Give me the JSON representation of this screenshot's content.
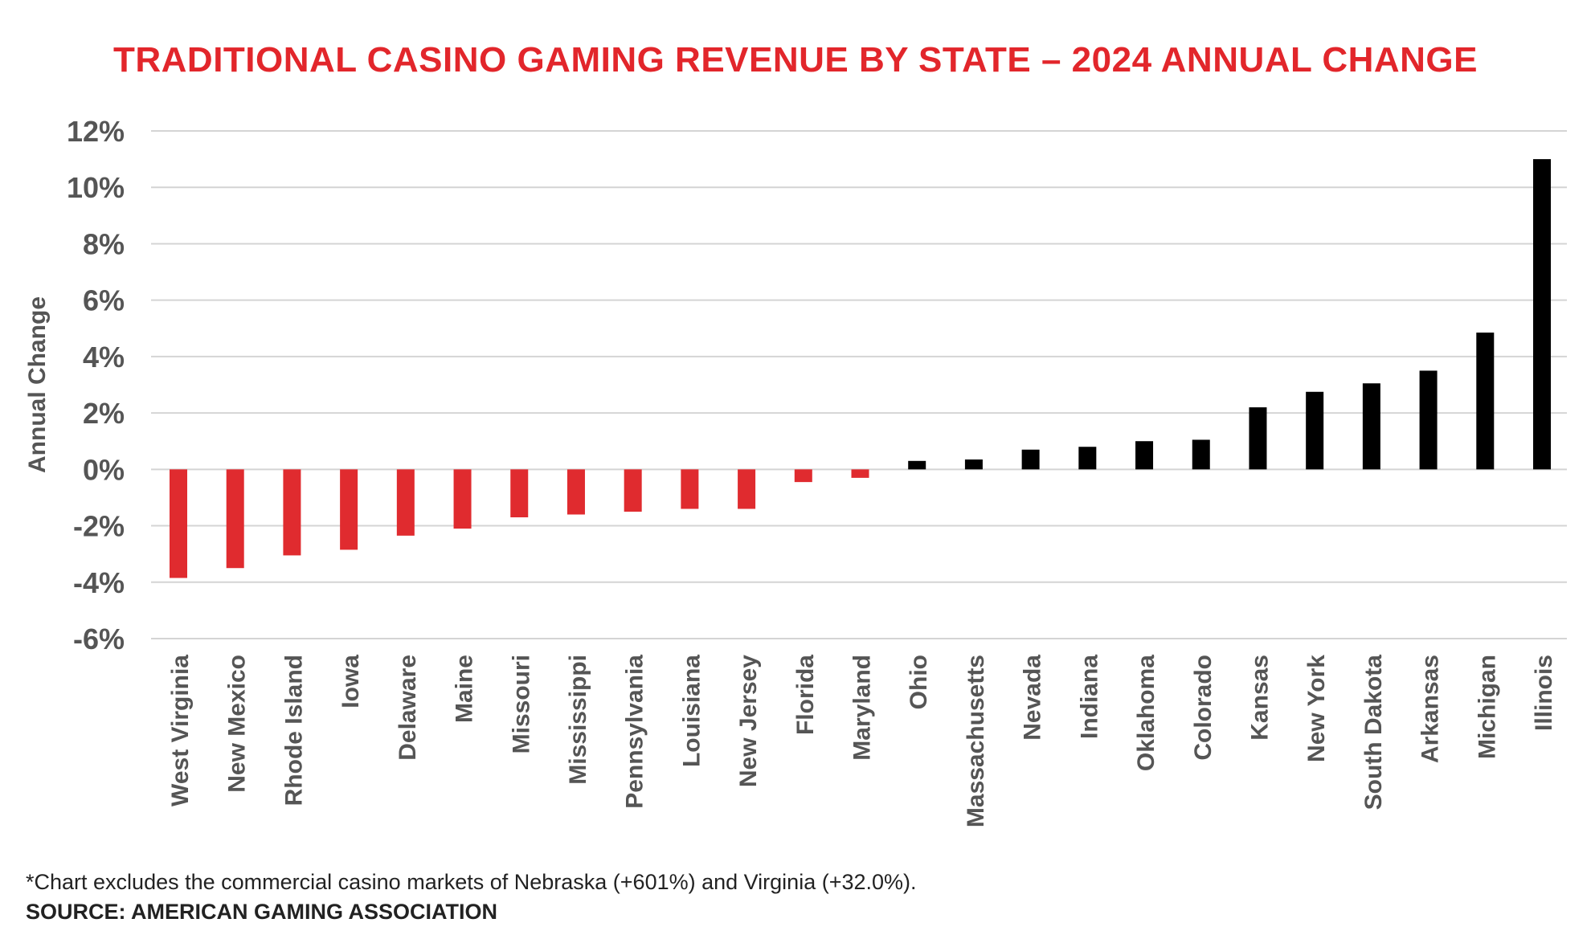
{
  "colors": {
    "title": "#e2262b",
    "negative": "#e02b2f",
    "positive": "#000000",
    "grid": "#d4d4d4",
    "axis_text": "#555555"
  },
  "chart_data": {
    "type": "bar",
    "title": "TRADITIONAL CASINO GAMING REVENUE BY STATE – 2024 ANNUAL CHANGE",
    "ylabel": "Annual Change",
    "xlabel": "",
    "ylim": [
      -6,
      12
    ],
    "yticks": [
      12,
      10,
      8,
      6,
      4,
      2,
      0,
      -2,
      -4,
      -6
    ],
    "ytick_labels": [
      "12%",
      "10%",
      "8%",
      "6%",
      "4%",
      "2%",
      "0%",
      "-2%",
      "-4%",
      "-6%"
    ],
    "grid": true,
    "categories": [
      "West Virginia",
      "New Mexico",
      "Rhode Island",
      "Iowa",
      "Delaware",
      "Maine",
      "Missouri",
      "Mississippi",
      "Pennsylvania",
      "Louisiana",
      "New Jersey",
      "Florida",
      "Maryland",
      "Ohio",
      "Massachusetts",
      "Nevada",
      "Indiana",
      "Oklahoma",
      "Colorado",
      "Kansas",
      "New York",
      "South Dakota",
      "Arkansas",
      "Michigan",
      "Illinois"
    ],
    "values": [
      -3.85,
      -3.5,
      -3.05,
      -2.85,
      -2.35,
      -2.1,
      -1.7,
      -1.6,
      -1.5,
      -1.4,
      -1.4,
      -0.45,
      -0.3,
      0.3,
      0.35,
      0.7,
      0.8,
      1.0,
      1.05,
      2.2,
      2.75,
      3.05,
      3.5,
      4.85,
      11.0
    ]
  },
  "footnote": "*Chart excludes the commercial casino markets of Nebraska (+601%) and Virginia (+32.0%).",
  "source": "SOURCE: AMERICAN GAMING ASSOCIATION"
}
